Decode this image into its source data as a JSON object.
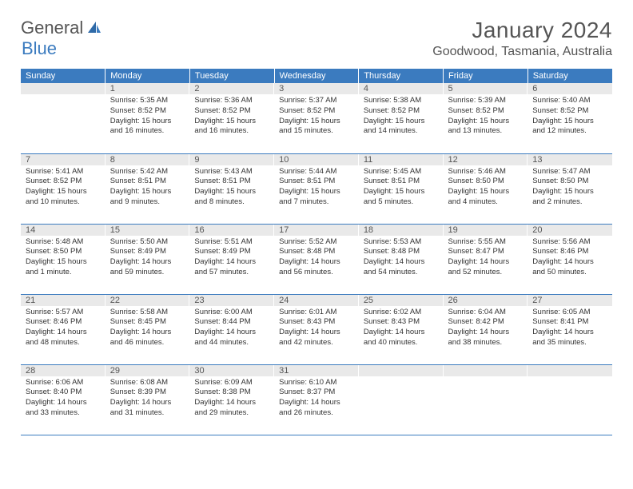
{
  "logo": {
    "text1": "General",
    "text2": "Blue"
  },
  "title": "January 2024",
  "location": "Goodwood, Tasmania, Australia",
  "weekdays": [
    "Sunday",
    "Monday",
    "Tuesday",
    "Wednesday",
    "Thursday",
    "Friday",
    "Saturday"
  ],
  "colors": {
    "header_bg": "#3b7bbf",
    "header_text": "#ffffff",
    "daynum_bg": "#e9e9e9",
    "row_border": "#3b7bbf",
    "text": "#333333",
    "title_text": "#555555"
  },
  "weeks": [
    [
      {
        "blank": true
      },
      {
        "n": "1",
        "sunrise": "Sunrise: 5:35 AM",
        "sunset": "Sunset: 8:52 PM",
        "day1": "Daylight: 15 hours",
        "day2": "and 16 minutes."
      },
      {
        "n": "2",
        "sunrise": "Sunrise: 5:36 AM",
        "sunset": "Sunset: 8:52 PM",
        "day1": "Daylight: 15 hours",
        "day2": "and 16 minutes."
      },
      {
        "n": "3",
        "sunrise": "Sunrise: 5:37 AM",
        "sunset": "Sunset: 8:52 PM",
        "day1": "Daylight: 15 hours",
        "day2": "and 15 minutes."
      },
      {
        "n": "4",
        "sunrise": "Sunrise: 5:38 AM",
        "sunset": "Sunset: 8:52 PM",
        "day1": "Daylight: 15 hours",
        "day2": "and 14 minutes."
      },
      {
        "n": "5",
        "sunrise": "Sunrise: 5:39 AM",
        "sunset": "Sunset: 8:52 PM",
        "day1": "Daylight: 15 hours",
        "day2": "and 13 minutes."
      },
      {
        "n": "6",
        "sunrise": "Sunrise: 5:40 AM",
        "sunset": "Sunset: 8:52 PM",
        "day1": "Daylight: 15 hours",
        "day2": "and 12 minutes."
      }
    ],
    [
      {
        "n": "7",
        "sunrise": "Sunrise: 5:41 AM",
        "sunset": "Sunset: 8:52 PM",
        "day1": "Daylight: 15 hours",
        "day2": "and 10 minutes."
      },
      {
        "n": "8",
        "sunrise": "Sunrise: 5:42 AM",
        "sunset": "Sunset: 8:51 PM",
        "day1": "Daylight: 15 hours",
        "day2": "and 9 minutes."
      },
      {
        "n": "9",
        "sunrise": "Sunrise: 5:43 AM",
        "sunset": "Sunset: 8:51 PM",
        "day1": "Daylight: 15 hours",
        "day2": "and 8 minutes."
      },
      {
        "n": "10",
        "sunrise": "Sunrise: 5:44 AM",
        "sunset": "Sunset: 8:51 PM",
        "day1": "Daylight: 15 hours",
        "day2": "and 7 minutes."
      },
      {
        "n": "11",
        "sunrise": "Sunrise: 5:45 AM",
        "sunset": "Sunset: 8:51 PM",
        "day1": "Daylight: 15 hours",
        "day2": "and 5 minutes."
      },
      {
        "n": "12",
        "sunrise": "Sunrise: 5:46 AM",
        "sunset": "Sunset: 8:50 PM",
        "day1": "Daylight: 15 hours",
        "day2": "and 4 minutes."
      },
      {
        "n": "13",
        "sunrise": "Sunrise: 5:47 AM",
        "sunset": "Sunset: 8:50 PM",
        "day1": "Daylight: 15 hours",
        "day2": "and 2 minutes."
      }
    ],
    [
      {
        "n": "14",
        "sunrise": "Sunrise: 5:48 AM",
        "sunset": "Sunset: 8:50 PM",
        "day1": "Daylight: 15 hours",
        "day2": "and 1 minute."
      },
      {
        "n": "15",
        "sunrise": "Sunrise: 5:50 AM",
        "sunset": "Sunset: 8:49 PM",
        "day1": "Daylight: 14 hours",
        "day2": "and 59 minutes."
      },
      {
        "n": "16",
        "sunrise": "Sunrise: 5:51 AM",
        "sunset": "Sunset: 8:49 PM",
        "day1": "Daylight: 14 hours",
        "day2": "and 57 minutes."
      },
      {
        "n": "17",
        "sunrise": "Sunrise: 5:52 AM",
        "sunset": "Sunset: 8:48 PM",
        "day1": "Daylight: 14 hours",
        "day2": "and 56 minutes."
      },
      {
        "n": "18",
        "sunrise": "Sunrise: 5:53 AM",
        "sunset": "Sunset: 8:48 PM",
        "day1": "Daylight: 14 hours",
        "day2": "and 54 minutes."
      },
      {
        "n": "19",
        "sunrise": "Sunrise: 5:55 AM",
        "sunset": "Sunset: 8:47 PM",
        "day1": "Daylight: 14 hours",
        "day2": "and 52 minutes."
      },
      {
        "n": "20",
        "sunrise": "Sunrise: 5:56 AM",
        "sunset": "Sunset: 8:46 PM",
        "day1": "Daylight: 14 hours",
        "day2": "and 50 minutes."
      }
    ],
    [
      {
        "n": "21",
        "sunrise": "Sunrise: 5:57 AM",
        "sunset": "Sunset: 8:46 PM",
        "day1": "Daylight: 14 hours",
        "day2": "and 48 minutes."
      },
      {
        "n": "22",
        "sunrise": "Sunrise: 5:58 AM",
        "sunset": "Sunset: 8:45 PM",
        "day1": "Daylight: 14 hours",
        "day2": "and 46 minutes."
      },
      {
        "n": "23",
        "sunrise": "Sunrise: 6:00 AM",
        "sunset": "Sunset: 8:44 PM",
        "day1": "Daylight: 14 hours",
        "day2": "and 44 minutes."
      },
      {
        "n": "24",
        "sunrise": "Sunrise: 6:01 AM",
        "sunset": "Sunset: 8:43 PM",
        "day1": "Daylight: 14 hours",
        "day2": "and 42 minutes."
      },
      {
        "n": "25",
        "sunrise": "Sunrise: 6:02 AM",
        "sunset": "Sunset: 8:43 PM",
        "day1": "Daylight: 14 hours",
        "day2": "and 40 minutes."
      },
      {
        "n": "26",
        "sunrise": "Sunrise: 6:04 AM",
        "sunset": "Sunset: 8:42 PM",
        "day1": "Daylight: 14 hours",
        "day2": "and 38 minutes."
      },
      {
        "n": "27",
        "sunrise": "Sunrise: 6:05 AM",
        "sunset": "Sunset: 8:41 PM",
        "day1": "Daylight: 14 hours",
        "day2": "and 35 minutes."
      }
    ],
    [
      {
        "n": "28",
        "sunrise": "Sunrise: 6:06 AM",
        "sunset": "Sunset: 8:40 PM",
        "day1": "Daylight: 14 hours",
        "day2": "and 33 minutes."
      },
      {
        "n": "29",
        "sunrise": "Sunrise: 6:08 AM",
        "sunset": "Sunset: 8:39 PM",
        "day1": "Daylight: 14 hours",
        "day2": "and 31 minutes."
      },
      {
        "n": "30",
        "sunrise": "Sunrise: 6:09 AM",
        "sunset": "Sunset: 8:38 PM",
        "day1": "Daylight: 14 hours",
        "day2": "and 29 minutes."
      },
      {
        "n": "31",
        "sunrise": "Sunrise: 6:10 AM",
        "sunset": "Sunset: 8:37 PM",
        "day1": "Daylight: 14 hours",
        "day2": "and 26 minutes."
      },
      {
        "blank": true
      },
      {
        "blank": true
      },
      {
        "blank": true
      }
    ]
  ]
}
